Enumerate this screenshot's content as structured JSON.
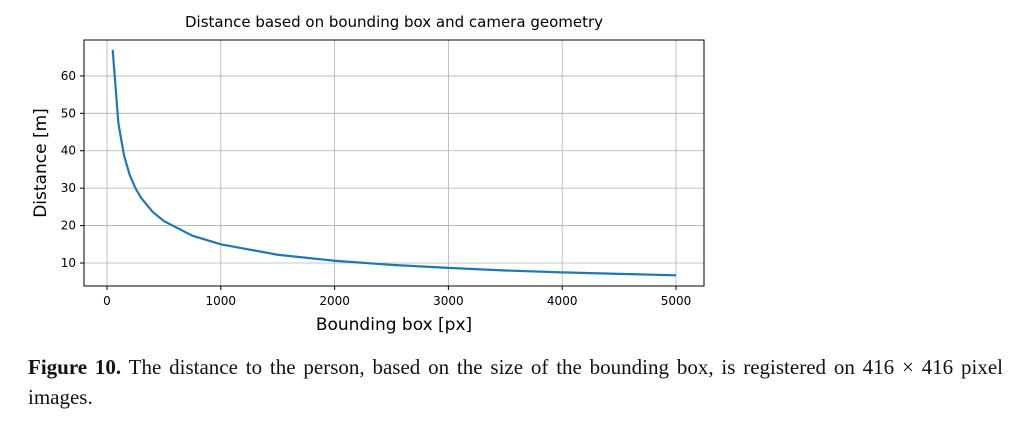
{
  "chart_data": {
    "type": "line",
    "title": "Distance based on bounding box and camera geometry",
    "xlabel": "Bounding box [px]",
    "ylabel": "Distance [m]",
    "x": [
      50,
      100,
      150,
      200,
      250,
      300,
      400,
      500,
      750,
      1000,
      1500,
      2000,
      2500,
      3000,
      3500,
      4000,
      4500,
      5000
    ],
    "series": [
      {
        "name": "distance",
        "color": "#1f77b4",
        "values": [
          67.0,
          47.4,
          38.7,
          33.5,
          30.0,
          27.4,
          23.7,
          21.2,
          17.3,
          15.0,
          12.2,
          10.6,
          9.5,
          8.7,
          8.0,
          7.5,
          7.1,
          6.7
        ]
      }
    ],
    "xlim": [
      -202,
      5246
    ],
    "xticks": [
      0,
      1000,
      2000,
      3000,
      4000,
      5000
    ],
    "ylim": [
      3.85,
      69.6
    ],
    "yticks": [
      10,
      20,
      30,
      40,
      50,
      60
    ],
    "grid": true
  },
  "caption": {
    "label": "Figure 10.",
    "text": "The distance to the person, based on the size of the bounding box, is registered on 416 × 416 pixel images."
  }
}
